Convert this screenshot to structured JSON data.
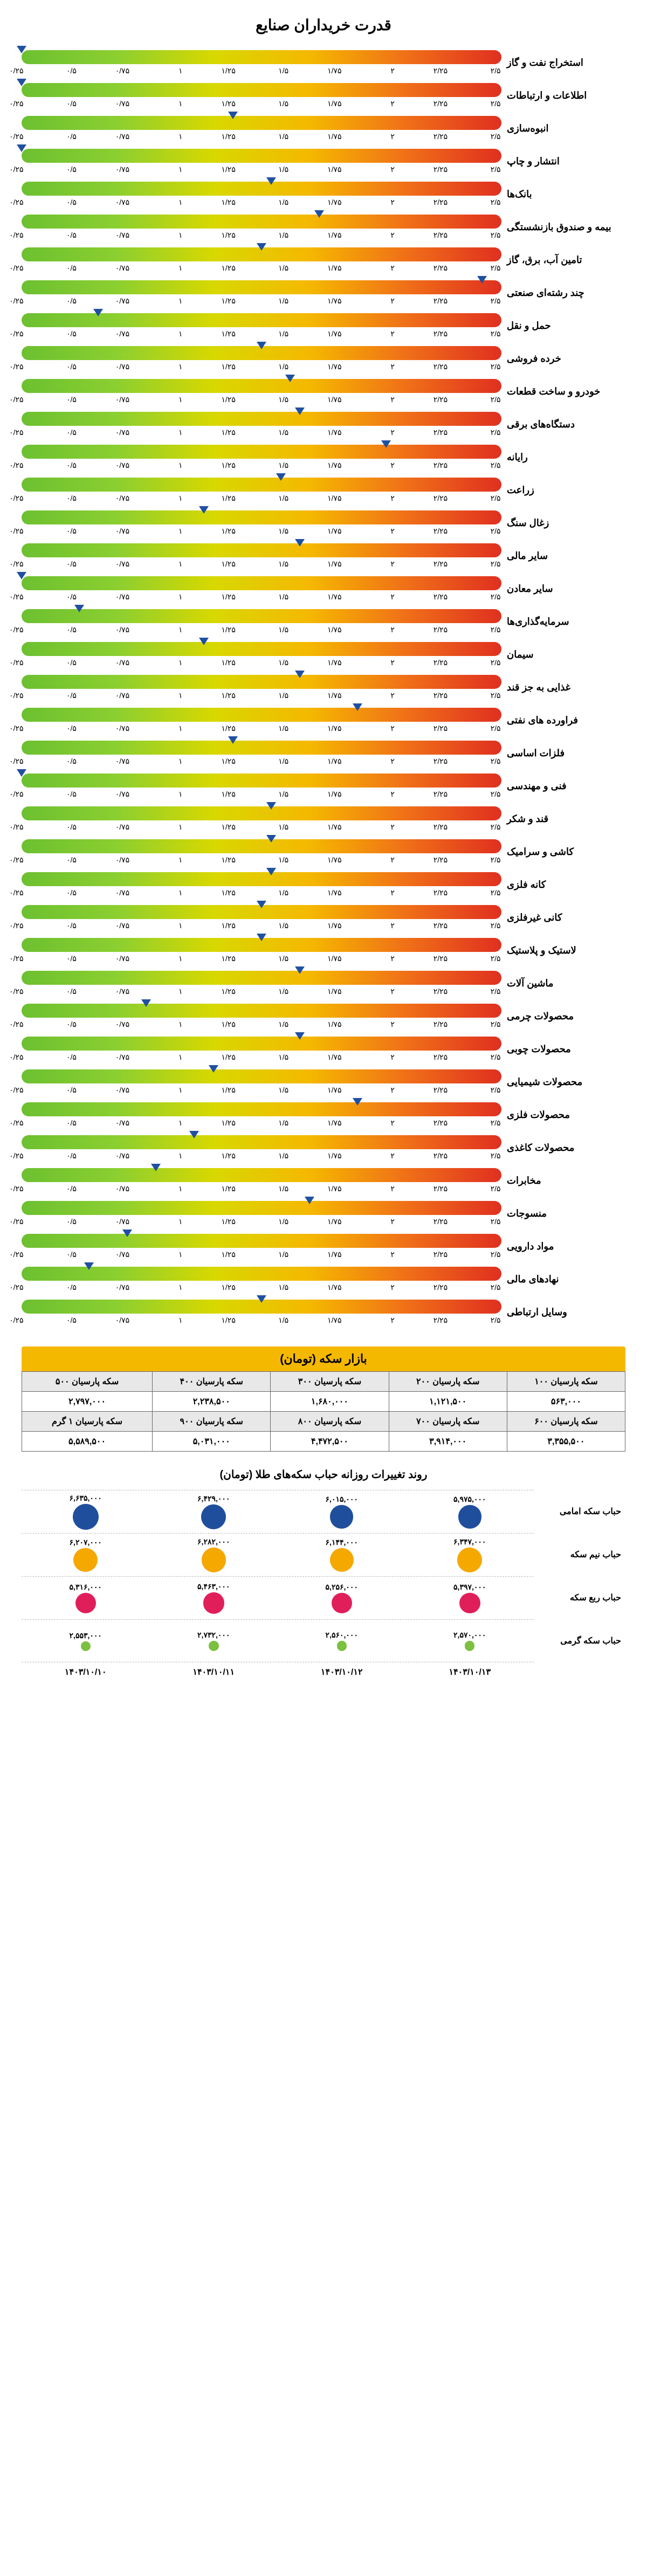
{
  "title": "قدرت خریداران صنایع",
  "gauge": {
    "min": 0,
    "max": 2.5,
    "ticks": [
      "۰/۲۵",
      "۰/۵",
      "۰/۷۵",
      "۱",
      "۱/۲۵",
      "۱/۵",
      "۱/۷۵",
      "۲",
      "۲/۲۵",
      "۲/۵"
    ],
    "gradient": [
      "#e03020",
      "#f07018",
      "#f5b800",
      "#d8d800",
      "#8ccf30",
      "#6cc030"
    ],
    "pointer_color": "#2050a0",
    "rows": [
      {
        "label": "استخراج نفت و گاز",
        "value": 2.5
      },
      {
        "label": "اطلاعات و ارتباطات",
        "value": 2.5
      },
      {
        "label": "انبوه‌سازی",
        "value": 1.4
      },
      {
        "label": "انتشار و چاپ",
        "value": 2.5
      },
      {
        "label": "بانک‌ها",
        "value": 1.2
      },
      {
        "label": "بیمه و صندوق بازنشستگی",
        "value": 0.95
      },
      {
        "label": "تامین آب، برق، گاز",
        "value": 1.25
      },
      {
        "label": "چند رشته‌ای صنعتی",
        "value": 0.1
      },
      {
        "label": "حمل و نقل",
        "value": 2.1
      },
      {
        "label": "خرده فروشی",
        "value": 1.25
      },
      {
        "label": "خودرو و ساخت قطعات",
        "value": 1.1
      },
      {
        "label": "دستگاه‌های برقی",
        "value": 1.05
      },
      {
        "label": "رایانه",
        "value": 0.6
      },
      {
        "label": "زراعت",
        "value": 1.15
      },
      {
        "label": "زغال سنگ",
        "value": 1.55
      },
      {
        "label": "سایر مالی",
        "value": 1.05
      },
      {
        "label": "سایر معادن",
        "value": 2.5
      },
      {
        "label": "سرمایه‌گذاری‌ها",
        "value": 2.2
      },
      {
        "label": "سیمان",
        "value": 1.55
      },
      {
        "label": "غذایی به جز قند",
        "value": 1.05
      },
      {
        "label": "فراورده های نفتی",
        "value": 0.75
      },
      {
        "label": "فلزات اساسی",
        "value": 1.4
      },
      {
        "label": "فنی و مهندسی",
        "value": 2.5
      },
      {
        "label": "قند و شکر",
        "value": 1.2
      },
      {
        "label": "کاشی و سرامیک",
        "value": 1.2
      },
      {
        "label": "کانه فلزی",
        "value": 1.2
      },
      {
        "label": "کانی غیرفلزی",
        "value": 1.25
      },
      {
        "label": "لاستیک و پلاستیک",
        "value": 1.25
      },
      {
        "label": "ماشین آلات",
        "value": 1.05
      },
      {
        "label": "محصولات چرمی",
        "value": 1.85
      },
      {
        "label": "محصولات چوبی",
        "value": 1.05
      },
      {
        "label": "محصولات شیمیایی",
        "value": 1.5
      },
      {
        "label": "محصولات فلزی",
        "value": 0.75
      },
      {
        "label": "محصولات کاغذی",
        "value": 1.6
      },
      {
        "label": "مخابرات",
        "value": 1.8
      },
      {
        "label": "منسوجات",
        "value": 1.0
      },
      {
        "label": "مواد دارویی",
        "value": 1.95
      },
      {
        "label": "نهادهای مالی",
        "value": 2.15
      },
      {
        "label": "وسایل ارتباطی",
        "value": 1.25
      }
    ]
  },
  "coin_market": {
    "title": "بازار سکه (تومان)",
    "header_bg": "#f5b800",
    "rows": [
      {
        "headers": [
          "سکه پارسیان ۱۰۰",
          "سکه پارسیان ۲۰۰",
          "سکه پارسیان ۳۰۰",
          "سکه پارسیان ۴۰۰",
          "سکه پارسیان ۵۰۰"
        ],
        "values": [
          "۵۶۳,۰۰۰",
          "۱,۱۲۱,۵۰۰",
          "۱,۶۸۰,۰۰۰",
          "۲,۲۳۸,۵۰۰",
          "۲,۷۹۷,۰۰۰"
        ]
      },
      {
        "headers": [
          "سکه پارسیان ۶۰۰",
          "سکه پارسیان ۷۰۰",
          "سکه پارسیان ۸۰۰",
          "سکه پارسیان ۹۰۰",
          "سکه پارسیان ۱ گرم"
        ],
        "values": [
          "۳,۳۵۵,۵۰۰",
          "۳,۹۱۴,۰۰۰",
          "۴,۴۷۲,۵۰۰",
          "۵,۰۳۱,۰۰۰",
          "۵,۵۸۹,۵۰۰"
        ]
      }
    ]
  },
  "bubble": {
    "title": "روند تغییرات روزانه حباب سکه‌های طلا (تومان)",
    "row_labels": [
      "حباب سکه امامی",
      "حباب نیم سکه",
      "حباب ربع سکه",
      "حباب سکه گرمی"
    ],
    "dates": [
      "۱۴۰۳/۱۰/۱۰",
      "۱۴۰۳/۱۰/۱۱",
      "۱۴۰۳/۱۰/۱۲",
      "۱۴۰۳/۱۰/۱۳"
    ],
    "colors": [
      "#1f4e9c",
      "#f5a800",
      "#e01f5a",
      "#7cc040"
    ],
    "max_size": 48,
    "min_size": 18,
    "data": [
      {
        "values": [
          6635000,
          6429000,
          6015000,
          5975000
        ],
        "labels": [
          "۶,۶۳۵,۰۰۰",
          "۶,۴۲۹,۰۰۰",
          "۶,۰۱۵,۰۰۰",
          "۵,۹۷۵,۰۰۰"
        ]
      },
      {
        "values": [
          6207000,
          6282000,
          6144000,
          6347000
        ],
        "labels": [
          "۶,۲۰۷,۰۰۰",
          "۶,۲۸۲,۰۰۰",
          "۶,۱۴۴,۰۰۰",
          "۶,۳۴۷,۰۰۰"
        ]
      },
      {
        "values": [
          5316000,
          5463000,
          5256000,
          5397000
        ],
        "labels": [
          "۵,۳۱۶,۰۰۰",
          "۵,۴۶۳,۰۰۰",
          "۵,۲۵۶,۰۰۰",
          "۵,۳۹۷,۰۰۰"
        ]
      },
      {
        "values": [
          2553000,
          2732000,
          2560000,
          2570000
        ],
        "labels": [
          "۲,۵۵۳,۰۰۰",
          "۲,۷۳۲,۰۰۰",
          "۲,۵۶۰,۰۰۰",
          "۲,۵۷۰,۰۰۰"
        ]
      }
    ]
  }
}
